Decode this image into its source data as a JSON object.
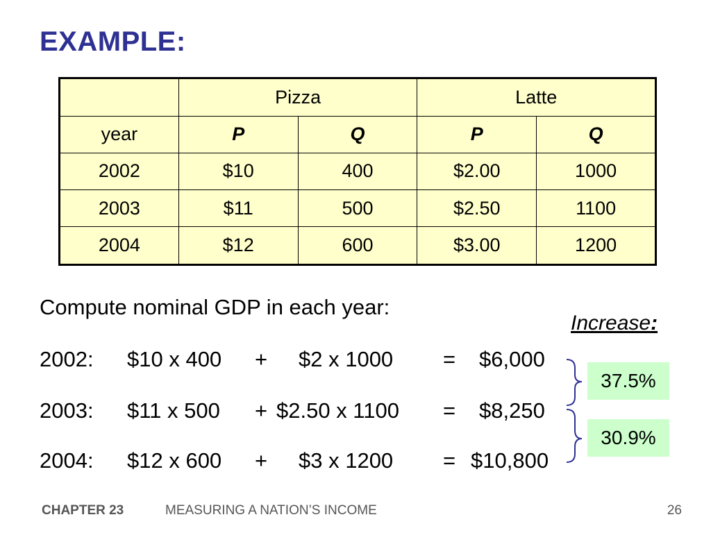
{
  "title": "EXAMPLE:",
  "table": {
    "group_headers": [
      "Pizza",
      "Latte"
    ],
    "column_headers": [
      "year",
      "P",
      "Q",
      "P",
      "Q"
    ],
    "rows": [
      [
        "2002",
        "$10",
        "400",
        "$2.00",
        "1000"
      ],
      [
        "2003",
        "$11",
        "500",
        "$2.50",
        "1100"
      ],
      [
        "2004",
        "$12",
        "600",
        "$3.00",
        "1200"
      ]
    ]
  },
  "compute_label": "Compute nominal GDP in each year:",
  "equations": [
    {
      "year": "2002:",
      "term1": "$10 x 400",
      "op": "+",
      "term2": "$2 x 1000",
      "eq": "=",
      "result": "$6,000"
    },
    {
      "year": "2003:",
      "term1": "$11 x 500",
      "op": "+",
      "term2": "$2.50 x 1100",
      "eq": "=",
      "result": "$8,250"
    },
    {
      "year": "2004:",
      "term1": "$12 x 600",
      "op": "+",
      "term2": "$3 x 1200",
      "eq": "=",
      "result": "$10,800"
    }
  ],
  "increase": {
    "label": "Increase",
    "colon": ":",
    "values": [
      "37.5%",
      "30.9%"
    ]
  },
  "footer": {
    "chapter": "CHAPTER 23",
    "title": "MEASURING A NATION’S INCOME",
    "page": "26"
  },
  "colors": {
    "title": "#2e3192",
    "table_bg": "#ffffcc",
    "highlight": "#ccffcc"
  }
}
